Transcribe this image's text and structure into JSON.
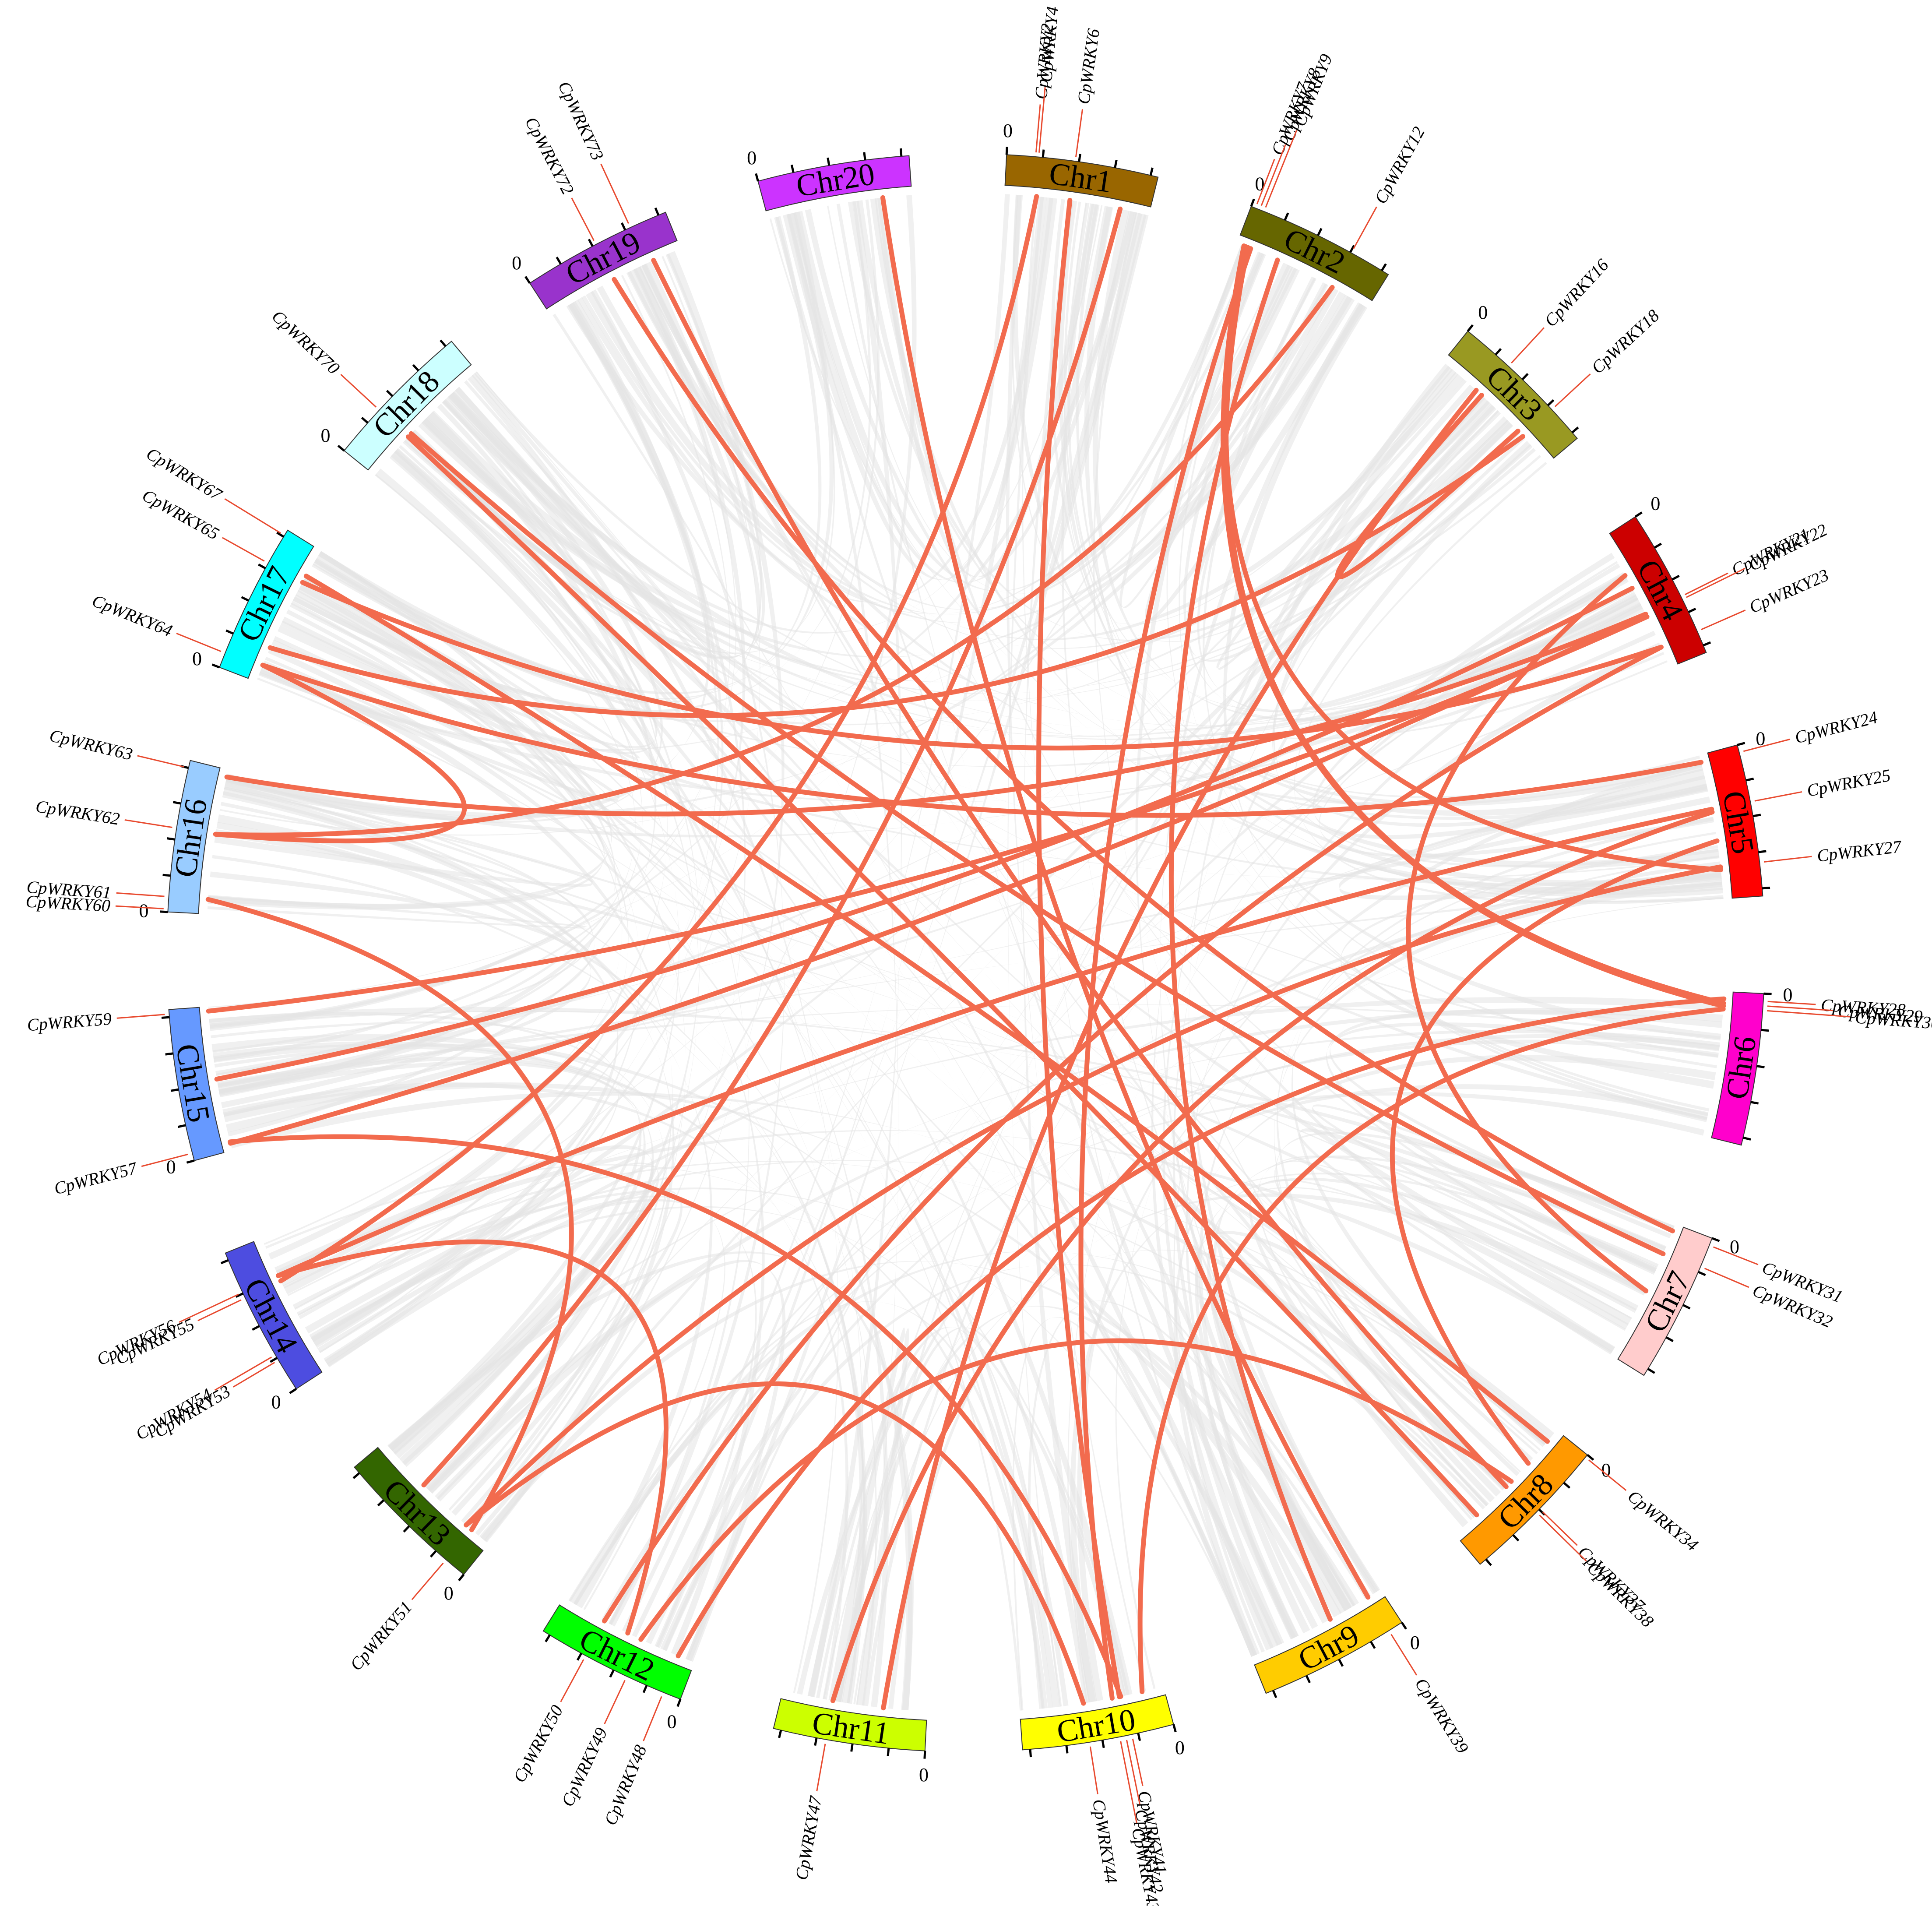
{
  "diagram": {
    "type": "circos",
    "chromosomes": [
      {
        "name": "Chr1",
        "color": "#996600"
      },
      {
        "name": "Chr2",
        "color": "#666600"
      },
      {
        "name": "Chr3",
        "color": "#999922"
      },
      {
        "name": "Chr4",
        "color": "#cc0000"
      },
      {
        "name": "Chr5",
        "color": "#ff0000"
      },
      {
        "name": "Chr6",
        "color": "#ff00cc"
      },
      {
        "name": "Chr7",
        "color": "#ffcccc"
      },
      {
        "name": "Chr8",
        "color": "#ff9900"
      },
      {
        "name": "Chr9",
        "color": "#ffcc00"
      },
      {
        "name": "Chr10",
        "color": "#ffff00"
      },
      {
        "name": "Chr11",
        "color": "#ccff00"
      },
      {
        "name": "Chr12",
        "color": "#00ff00"
      },
      {
        "name": "Chr13",
        "color": "#336600"
      },
      {
        "name": "Chr14",
        "color": "#4d4de0"
      },
      {
        "name": "Chr15",
        "color": "#6699ff"
      },
      {
        "name": "Chr16",
        "color": "#99ccff"
      },
      {
        "name": "Chr17",
        "color": "#00ffff"
      },
      {
        "name": "Chr18",
        "color": "#ccffff"
      },
      {
        "name": "Chr19",
        "color": "#9933cc"
      },
      {
        "name": "Chr20",
        "color": "#cc33ff"
      }
    ],
    "zero_tick_label": "0",
    "colors": {
      "synteny_background": "#e3e3e3",
      "wrky_links": "#f26b4e",
      "gene_leader_lines": "#e84a2f"
    },
    "genes": [
      {
        "name": "CpWRKY2",
        "chr": 0,
        "pos": 0.19,
        "ring": 0
      },
      {
        "name": "CpWRKY4",
        "chr": 0,
        "pos": 0.21,
        "ring": 1
      },
      {
        "name": "CpWRKY6",
        "chr": 0,
        "pos": 0.45,
        "ring": 0
      },
      {
        "name": "CpWRKY7",
        "chr": 1,
        "pos": 0.03,
        "ring": 0
      },
      {
        "name": "CpWRKY8",
        "chr": 1,
        "pos": 0.06,
        "ring": 1
      },
      {
        "name": "CpWRKY9",
        "chr": 1,
        "pos": 0.09,
        "ring": 2
      },
      {
        "name": "CpWRKY12",
        "chr": 1,
        "pos": 0.72,
        "ring": 0
      },
      {
        "name": "CpWRKY16",
        "chr": 2,
        "pos": 0.35,
        "ring": 0
      },
      {
        "name": "CpWRKY18",
        "chr": 2,
        "pos": 0.75,
        "ring": 0
      },
      {
        "name": "CpWRKY21",
        "chr": 3,
        "pos": 0.6,
        "ring": 0
      },
      {
        "name": "CpWRKY22",
        "chr": 3,
        "pos": 0.62,
        "ring": 1
      },
      {
        "name": "CpWRKY23",
        "chr": 3,
        "pos": 0.85,
        "ring": 0
      },
      {
        "name": "CpWRKY24",
        "chr": 4,
        "pos": 0.05,
        "ring": 0
      },
      {
        "name": "CpWRKY25",
        "chr": 4,
        "pos": 0.38,
        "ring": 0
      },
      {
        "name": "CpWRKY27",
        "chr": 4,
        "pos": 0.78,
        "ring": 0
      },
      {
        "name": "CpWRKY28",
        "chr": 5,
        "pos": 0.05,
        "ring": 0
      },
      {
        "name": "CpWRKY29",
        "chr": 5,
        "pos": 0.08,
        "ring": 1
      },
      {
        "name": "CpWRKY30",
        "chr": 5,
        "pos": 0.11,
        "ring": 2
      },
      {
        "name": "CpWRKY31",
        "chr": 6,
        "pos": 0.05,
        "ring": 0
      },
      {
        "name": "CpWRKY32",
        "chr": 6,
        "pos": 0.2,
        "ring": 0
      },
      {
        "name": "CpWRKY34",
        "chr": 7,
        "pos": 0.02,
        "ring": 0
      },
      {
        "name": "CpWRKY37",
        "chr": 7,
        "pos": 0.47,
        "ring": 0
      },
      {
        "name": "CpWRKY38",
        "chr": 7,
        "pos": 0.5,
        "ring": 1
      },
      {
        "name": "CpWRKY39",
        "chr": 8,
        "pos": 0.1,
        "ring": 0
      },
      {
        "name": "CpWRKY41",
        "chr": 9,
        "pos": 0.28,
        "ring": 0
      },
      {
        "name": "CpWRKY42",
        "chr": 9,
        "pos": 0.32,
        "ring": 1
      },
      {
        "name": "CpWRKY43",
        "chr": 9,
        "pos": 0.36,
        "ring": 2
      },
      {
        "name": "CpWRKY44",
        "chr": 9,
        "pos": 0.56,
        "ring": 0
      },
      {
        "name": "CpWRKY47",
        "chr": 10,
        "pos": 0.65,
        "ring": 0
      },
      {
        "name": "CpWRKY48",
        "chr": 11,
        "pos": 0.12,
        "ring": 0
      },
      {
        "name": "CpWRKY49",
        "chr": 11,
        "pos": 0.38,
        "ring": 0
      },
      {
        "name": "CpWRKY50",
        "chr": 11,
        "pos": 0.68,
        "ring": 0
      },
      {
        "name": "CpWRKY51",
        "chr": 12,
        "pos": 0.15,
        "ring": 0
      },
      {
        "name": "CpWRKY53",
        "chr": 13,
        "pos": 0.22,
        "ring": 0
      },
      {
        "name": "CpWRKY54",
        "chr": 13,
        "pos": 0.26,
        "ring": 1
      },
      {
        "name": "CpWRKY55",
        "chr": 13,
        "pos": 0.68,
        "ring": 0
      },
      {
        "name": "CpWRKY56",
        "chr": 13,
        "pos": 0.72,
        "ring": 1
      },
      {
        "name": "CpWRKY57",
        "chr": 14,
        "pos": 0.05,
        "ring": 0
      },
      {
        "name": "CpWRKY59",
        "chr": 14,
        "pos": 0.97,
        "ring": 0
      },
      {
        "name": "CpWRKY60",
        "chr": 15,
        "pos": 0.02,
        "ring": 0
      },
      {
        "name": "CpWRKY61",
        "chr": 15,
        "pos": 0.1,
        "ring": 0
      },
      {
        "name": "CpWRKY62",
        "chr": 15,
        "pos": 0.55,
        "ring": 0
      },
      {
        "name": "CpWRKY63",
        "chr": 15,
        "pos": 0.95,
        "ring": 0
      },
      {
        "name": "CpWRKY64",
        "chr": 16,
        "pos": 0.1,
        "ring": 0
      },
      {
        "name": "CpWRKY65",
        "chr": 16,
        "pos": 0.75,
        "ring": 0
      },
      {
        "name": "CpWRKY67",
        "chr": 16,
        "pos": 0.96,
        "ring": 1
      },
      {
        "name": "CpWRKY70",
        "chr": 17,
        "pos": 0.35,
        "ring": 0
      },
      {
        "name": "CpWRKY72",
        "chr": 18,
        "pos": 0.5,
        "ring": 0
      },
      {
        "name": "CpWRKY73",
        "chr": 18,
        "pos": 0.75,
        "ring": 1
      }
    ],
    "links": [
      [
        0,
        0.22,
        13,
        0.68
      ],
      [
        0,
        0.45,
        9,
        0.31
      ],
      [
        1,
        0.06,
        4,
        0.8
      ],
      [
        1,
        0.05,
        5,
        0.1
      ],
      [
        1,
        0.08,
        5,
        0.08
      ],
      [
        1,
        0.72,
        15,
        0.55
      ],
      [
        2,
        0.35,
        2,
        0.7
      ],
      [
        2,
        0.75,
        16,
        0.25
      ],
      [
        3,
        0.6,
        15,
        0.95
      ],
      [
        3,
        0.62,
        14,
        0.97
      ],
      [
        3,
        0.85,
        16,
        0.75
      ],
      [
        4,
        0.05,
        16,
        0.12
      ],
      [
        4,
        0.38,
        13,
        0.72
      ],
      [
        4,
        0.78,
        12,
        0.2
      ],
      [
        5,
        0.05,
        11,
        0.12
      ],
      [
        6,
        0.05,
        18,
        0.5
      ],
      [
        6,
        0.22,
        17,
        0.38
      ],
      [
        7,
        0.1,
        16,
        0.8
      ],
      [
        7,
        0.47,
        11,
        0.4
      ],
      [
        7,
        0.52,
        18,
        0.8
      ],
      [
        8,
        0.1,
        19,
        0.8
      ],
      [
        9,
        0.3,
        14,
        0.06
      ],
      [
        9,
        0.36,
        1,
        0.1
      ],
      [
        9,
        0.56,
        12,
        0.2
      ],
      [
        10,
        0.65,
        4,
        0.4
      ],
      [
        11,
        0.68,
        3,
        0.85
      ],
      [
        12,
        0.15,
        15,
        0.1
      ],
      [
        14,
        0.05,
        3,
        0.6
      ],
      [
        2,
        0.3,
        10,
        0.3
      ],
      [
        5,
        0.12,
        9,
        0.15
      ],
      [
        6,
        0.5,
        3,
        0.3
      ],
      [
        8,
        0.4,
        1,
        0.3
      ],
      [
        15,
        0.55,
        16,
        0.12
      ],
      [
        17,
        0.35,
        7,
        0.8
      ],
      [
        4,
        0.6,
        7,
        0.3
      ],
      [
        13,
        0.72,
        11,
        0.5
      ],
      [
        0,
        0.8,
        12,
        0.6
      ],
      [
        3,
        0.4,
        14,
        0.5
      ]
    ]
  }
}
